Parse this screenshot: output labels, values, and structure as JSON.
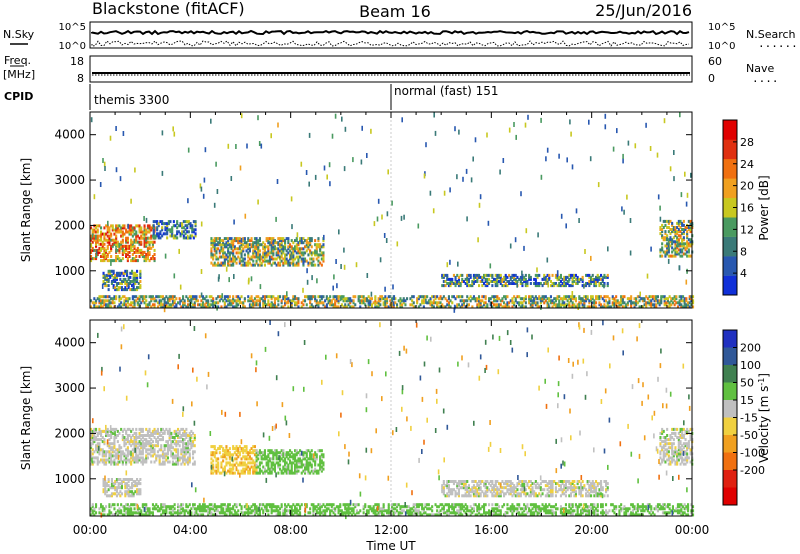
{
  "header": {
    "left_title": "Blackstone (fitACF)",
    "center_title": "Beam 16",
    "right_title": "25/Jun/2016"
  },
  "top_strip": {
    "left_label": "N.Sky",
    "right_label": "N.Search",
    "right_line_glyph": "........",
    "left_ticks": [
      "10^5",
      "10^0"
    ],
    "right_ticks": [
      "10^5",
      "10^0"
    ]
  },
  "freq_strip": {
    "left_label": "Freq.",
    "left_unit": "[MHz]",
    "right_label": "Nave",
    "right_line_glyph": "....",
    "left_ticks": [
      "18",
      "8"
    ],
    "right_ticks": [
      "60",
      "0"
    ]
  },
  "cpid_strip": {
    "label": "CPID",
    "segments": [
      {
        "start_hour": 0,
        "end_hour": 12,
        "text": "themis 3300"
      },
      {
        "start_hour": 12,
        "end_hour": 24,
        "text": "normal (fast) 151"
      }
    ]
  },
  "colors": {
    "power_scale": [
      "#1030d8",
      "#2858b0",
      "#3a7a78",
      "#4a9a60",
      "#c8c820",
      "#f0a020",
      "#f07010",
      "#e03010",
      "#e00000"
    ],
    "velocity_scale": [
      "#2030c0",
      "#305898",
      "#408050",
      "#60c040",
      "#c0c0c0",
      "#f0d040",
      "#f0a020",
      "#f07010",
      "#e02010",
      "#e00000"
    ]
  },
  "chart_data": [
    {
      "type": "heatmap",
      "title": "Power",
      "xlabel": "",
      "ylabel": "Slant Range [km]",
      "x_range_hours": [
        0,
        24
      ],
      "ylim": [
        180,
        4500
      ],
      "y_ticks": [
        "1000",
        "2000",
        "3000",
        "4000"
      ],
      "colorbar": {
        "label": "Power [dB]",
        "range": [
          0,
          32
        ],
        "ticks": [
          "4",
          "8",
          "12",
          "16",
          "20",
          "24",
          "28"
        ]
      },
      "echo_regions": [
        {
          "t_start": 0.0,
          "t_end": 2.6,
          "range_start": 1200,
          "range_end": 2000,
          "level": 20
        },
        {
          "t_start": 0.5,
          "t_end": 2.0,
          "range_start": 560,
          "range_end": 1000,
          "level": 10
        },
        {
          "t_start": 2.5,
          "t_end": 4.2,
          "range_start": 1700,
          "range_end": 2100,
          "level": 8
        },
        {
          "t_start": 4.8,
          "t_end": 9.3,
          "range_start": 1100,
          "range_end": 1700,
          "level": 14
        },
        {
          "t_start": 14.0,
          "t_end": 20.6,
          "range_start": 650,
          "range_end": 900,
          "level": 10
        },
        {
          "t_start": 22.7,
          "t_end": 24.0,
          "range_start": 1300,
          "range_end": 2100,
          "level": 14
        },
        {
          "t_start": 0.0,
          "t_end": 24.0,
          "range_start": 180,
          "range_end": 420,
          "level": 14
        }
      ]
    },
    {
      "type": "heatmap",
      "title": "Velocity",
      "xlabel": "Time UT",
      "ylabel": "Slant Range [km]",
      "x_range_hours": [
        0,
        24
      ],
      "x_ticks": [
        "00:00",
        "04:00",
        "08:00",
        "12:00",
        "16:00",
        "20:00",
        "00:00"
      ],
      "ylim": [
        180,
        4500
      ],
      "y_ticks": [
        "1000",
        "2000",
        "3000",
        "4000"
      ],
      "colorbar": {
        "label": "Velocity [m s",
        "label_sup": "-1",
        "label_end": "]",
        "ticks": [
          "200",
          "100",
          "50",
          "15",
          "-15",
          "-50",
          "-100",
          "-200"
        ]
      },
      "echo_regions": [
        {
          "t_start": 0.0,
          "t_end": 4.2,
          "range_start": 1300,
          "range_end": 2100,
          "velocity": 0
        },
        {
          "t_start": 0.5,
          "t_end": 2.0,
          "range_start": 600,
          "range_end": 1000,
          "velocity": 0
        },
        {
          "t_start": 4.8,
          "t_end": 6.6,
          "range_start": 1100,
          "range_end": 1700,
          "velocity": -40
        },
        {
          "t_start": 6.6,
          "t_end": 9.3,
          "range_start": 1100,
          "range_end": 1600,
          "velocity": 30
        },
        {
          "t_start": 14.0,
          "t_end": 20.6,
          "range_start": 600,
          "range_end": 950,
          "velocity": 0
        },
        {
          "t_start": 22.7,
          "t_end": 24.0,
          "range_start": 1300,
          "range_end": 2100,
          "velocity": 0
        },
        {
          "t_start": 0.0,
          "t_end": 24.0,
          "range_start": 180,
          "range_end": 420,
          "velocity": 30
        }
      ]
    }
  ]
}
